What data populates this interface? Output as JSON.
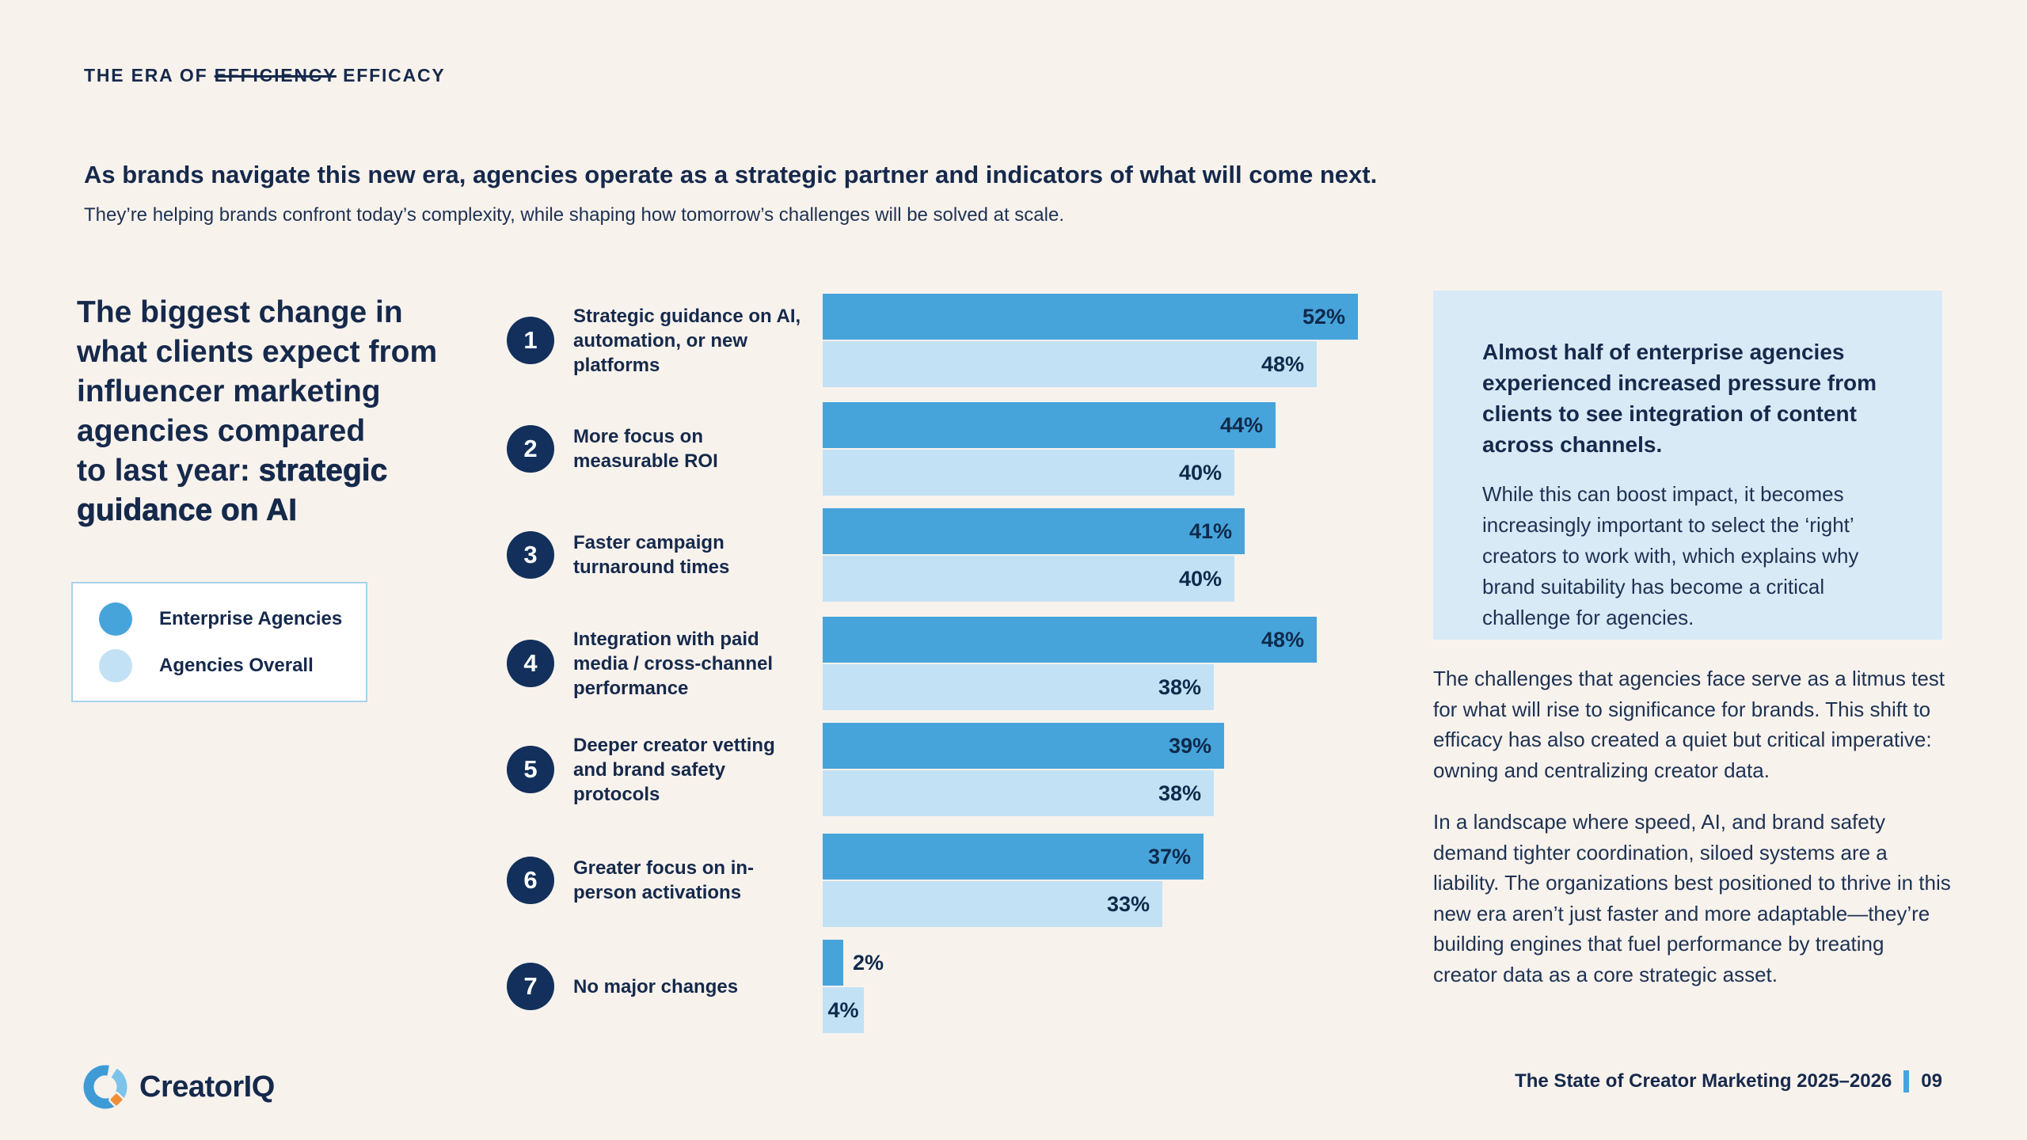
{
  "tagline": {
    "prefix": "THE ERA OF ",
    "struck": "EFFICIENCY",
    "suffix": " EFFICACY"
  },
  "headline": "As brands navigate this new era, agencies operate as a strategic partner and indicators of what will come next.",
  "subheadline": "They’re helping brands confront today’s complexity, while shaping how tomorrow’s challenges will be solved at scale.",
  "left_panel": {
    "title_regular": "The biggest change in\nwhat clients expect from\ninfluencer marketing\nagencies compared\nto last year: ",
    "title_bold": "strategic guidance on AI",
    "legend": [
      {
        "label": "Enterprise Agencies",
        "color": "#47A4DB"
      },
      {
        "label": "Agencies Overall",
        "color": "#C3E1F4"
      }
    ]
  },
  "chart_data": {
    "type": "bar",
    "orientation": "horizontal",
    "ranks": [
      "1",
      "2",
      "3",
      "4",
      "5",
      "6",
      "7"
    ],
    "categories": [
      "Strategic guidance on AI, automation, or new platforms",
      "More focus on measurable ROI",
      "Faster campaign turnaround times",
      "Integration with paid media / cross-channel performance",
      "Deeper creator vetting and brand safety protocols",
      "Greater focus on in-person activations",
      "No major changes"
    ],
    "series": [
      {
        "name": "Enterprise Agencies",
        "color": "#47A4DB",
        "values": [
          52,
          44,
          41,
          48,
          39,
          37,
          2
        ]
      },
      {
        "name": "Agencies Overall",
        "color": "#C3E1F4",
        "values": [
          48,
          40,
          40,
          38,
          38,
          33,
          4
        ]
      }
    ],
    "value_suffix": "%",
    "xlim": [
      0,
      55
    ],
    "grid": false,
    "legend_position": "left",
    "value_labels": "end-of-bar"
  },
  "callout": {
    "heading": "Almost half of enterprise agencies experienced increased pressure from clients to see integration of content across channels.",
    "body": "While this can boost impact, it becomes increasingly important to select the ‘right’ creators to work with, which explains why brand suitability has become a critical challenge for agencies."
  },
  "main_paragraphs": {
    "p1": "The challenges that agencies face serve as a litmus test for what will rise to significance for brands. This shift to efficacy has also created a quiet but critical imperative: owning and centralizing creator data.",
    "p2": "In a landscape where speed, AI, and brand safety demand tighter coordination, siloed systems are a liability. The organizations best positioned to thrive in this new era aren’t just faster and more adaptable—they’re building engines that fuel performance by treating creator data as a core strategic asset."
  },
  "footer": {
    "brand": "CreatorIQ",
    "report_title": "The State of Creator Marketing 2025–2026",
    "page_number": "09"
  },
  "colors": {
    "background": "#F8F2ED",
    "navy_text": "#15294B",
    "badge_navy": "#12305B",
    "enterprise_blue": "#47A4DB",
    "overall_light_blue": "#C3E1F4",
    "callout_background": "#D9EAF7",
    "accent_orange": "#EE8F35"
  }
}
